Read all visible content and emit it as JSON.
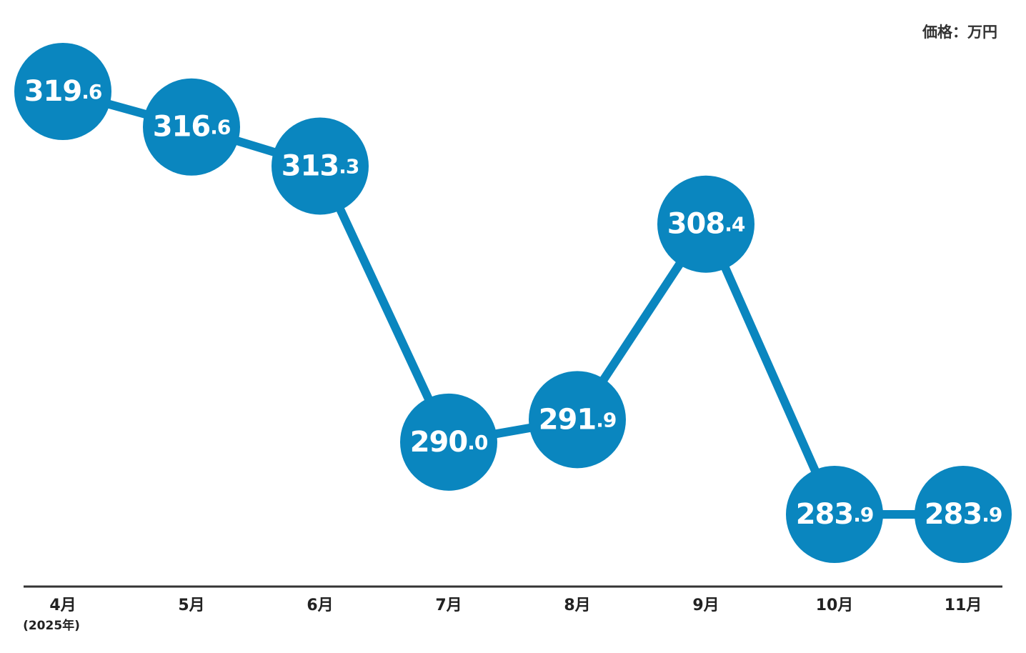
{
  "chart_data": {
    "type": "line",
    "annotation": "価格：万円",
    "categories": [
      "4月",
      "5月",
      "6月",
      "7月",
      "8月",
      "9月",
      "10月",
      "11月"
    ],
    "x_note": "(2025年)",
    "series": [
      {
        "color": "#0a86bf",
        "values": [
          319.6,
          316.6,
          313.3,
          290.0,
          291.9,
          308.4,
          283.9,
          283.9
        ],
        "value_labels": [
          "319.6",
          "316.6",
          "313.3",
          "290.0",
          "291.9",
          "308.4",
          "283.9",
          "283.9"
        ]
      }
    ]
  }
}
